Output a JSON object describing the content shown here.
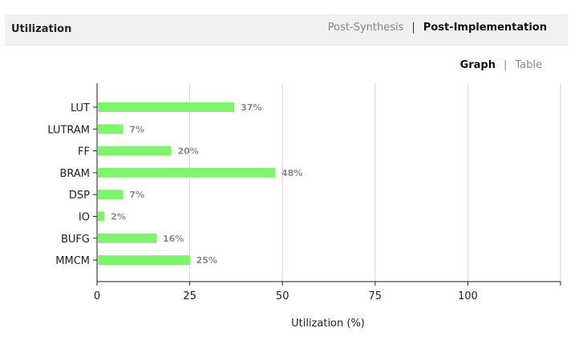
{
  "header": {
    "title": "Utilization",
    "tabs": [
      {
        "label": "Post-Synthesis",
        "active": false
      },
      {
        "label": "Post-Implementation",
        "active": true
      }
    ],
    "separator": "|"
  },
  "view": {
    "options": [
      {
        "label": "Graph",
        "active": true
      },
      {
        "label": "Table",
        "active": false
      }
    ],
    "separator": "|"
  },
  "colors": {
    "bar": "#7cf56c",
    "bar_label": "#8c8c8c",
    "grid": "#d6d6d6",
    "axis": "#222222"
  },
  "chart_data": {
    "type": "bar",
    "orientation": "horizontal",
    "categories": [
      "LUT",
      "LUTRAM",
      "FF",
      "BRAM",
      "DSP",
      "IO",
      "BUFG",
      "MMCM"
    ],
    "values": [
      37,
      7,
      20,
      48,
      7,
      2,
      16,
      25
    ],
    "value_labels": [
      "37%",
      "7%",
      "20%",
      "48%",
      "7%",
      "2%",
      "16%",
      "25%"
    ],
    "xlabel": "Utilization (%)",
    "xlim": [
      0,
      125
    ],
    "xticks": [
      0,
      25,
      50,
      75,
      100
    ],
    "grid": true
  }
}
